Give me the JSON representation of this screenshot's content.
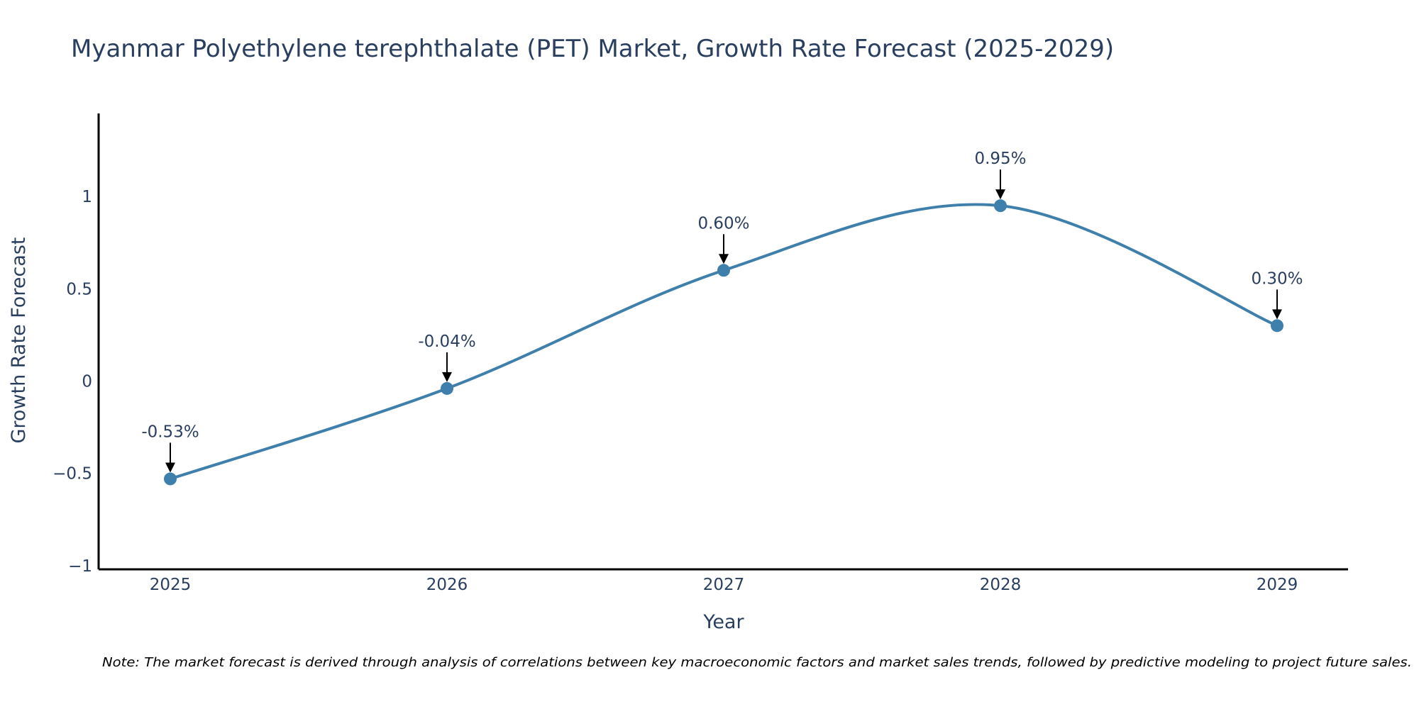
{
  "chart_data": {
    "type": "line",
    "title": "Myanmar Polyethylene terephthalate (PET) Market, Growth Rate Forecast (2025-2029)",
    "xlabel": "Year",
    "ylabel": "Growth Rate Forecast",
    "categories": [
      "2025",
      "2026",
      "2027",
      "2028",
      "2029"
    ],
    "values": [
      -0.53,
      -0.04,
      0.6,
      0.95,
      0.3
    ],
    "data_labels": [
      "-0.53%",
      "-0.04%",
      "0.60%",
      "0.95%",
      "0.30%"
    ],
    "y_ticks": [
      -1,
      -0.5,
      0,
      0.5,
      1
    ],
    "y_tick_labels": [
      "−1",
      "−0.5",
      "0",
      "0.5",
      "1"
    ],
    "ylim": [
      -1.02,
      1.45
    ],
    "grid": false,
    "line_shape": "spline",
    "series_color": "#3f7fab",
    "note": "Note: The market forecast is derived through analysis of correlations between key macroeconomic factors and market sales trends, followed by predictive modeling to project future sales."
  }
}
